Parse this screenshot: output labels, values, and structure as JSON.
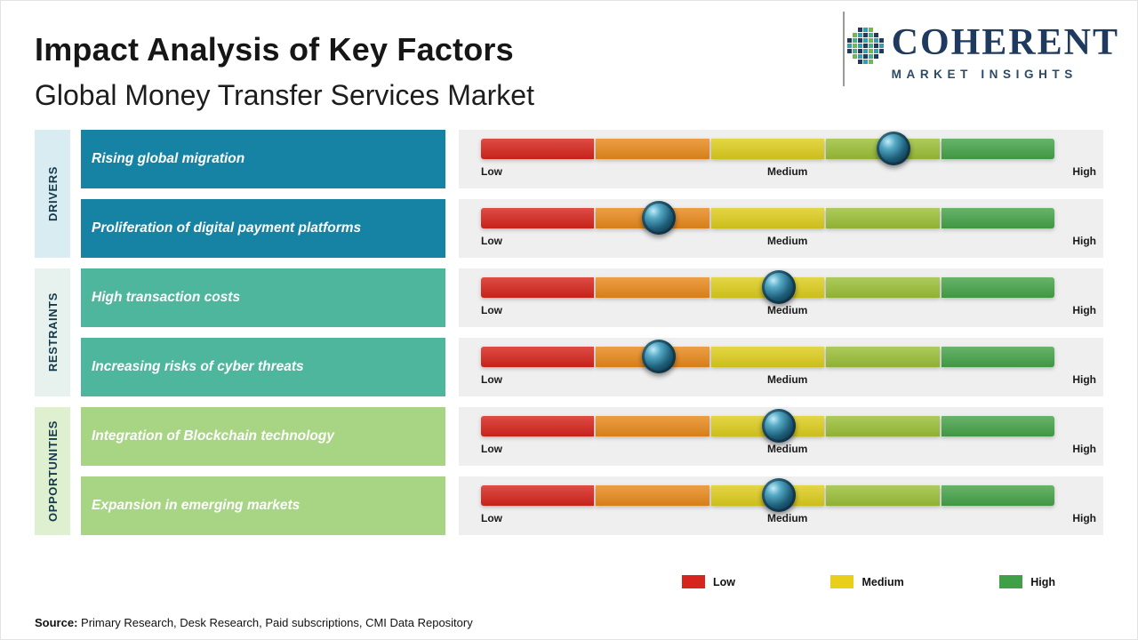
{
  "header": {
    "title": "Impact Analysis of Key Factors",
    "subtitle": "Global Money Transfer Services Market"
  },
  "logo": {
    "brand": "COHERENT",
    "tagline": "MARKET INSIGHTS"
  },
  "chart_data": {
    "type": "impact-slider-table",
    "title": "Impact Analysis of Key Factors",
    "subtitle": "Global Money Transfer Services Market",
    "scale_labels": [
      "Low",
      "Medium",
      "High"
    ],
    "scale_range_percent": [
      0,
      100
    ],
    "segment_colors": [
      "#d6251c",
      "#e8891c",
      "#ddcd1d",
      "#9bbf37",
      "#46a349"
    ],
    "groups": [
      {
        "name": "DRIVERS",
        "label_bg": "#d8ecf2",
        "factor_bg": "#1683a4",
        "factors": [
          {
            "label": "Rising global migration",
            "impact_percent": 72
          },
          {
            "label": "Proliferation of digital payment platforms",
            "impact_percent": 31
          }
        ]
      },
      {
        "name": "RESTRAINTS",
        "label_bg": "#e7f2ee",
        "factor_bg": "#4eb69d",
        "factors": [
          {
            "label": "High transaction costs",
            "impact_percent": 52
          },
          {
            "label": "Increasing risks of cyber threats",
            "impact_percent": 31
          }
        ]
      },
      {
        "name": "OPPORTUNITIES",
        "label_bg": "#dff0d0",
        "factor_bg": "#a7d584",
        "factors": [
          {
            "label": "Integration of Blockchain technology",
            "impact_percent": 52
          },
          {
            "label": "Expansion in emerging markets",
            "impact_percent": 52
          }
        ]
      }
    ]
  },
  "legend": {
    "items": [
      {
        "label": "Low",
        "color": "#d6251c"
      },
      {
        "label": "Medium",
        "color": "#e8d01a"
      },
      {
        "label": "High",
        "color": "#3fa047"
      }
    ]
  },
  "source": {
    "label": "Source:",
    "text": " Primary Research, Desk Research, Paid subscriptions, CMI Data Repository"
  }
}
